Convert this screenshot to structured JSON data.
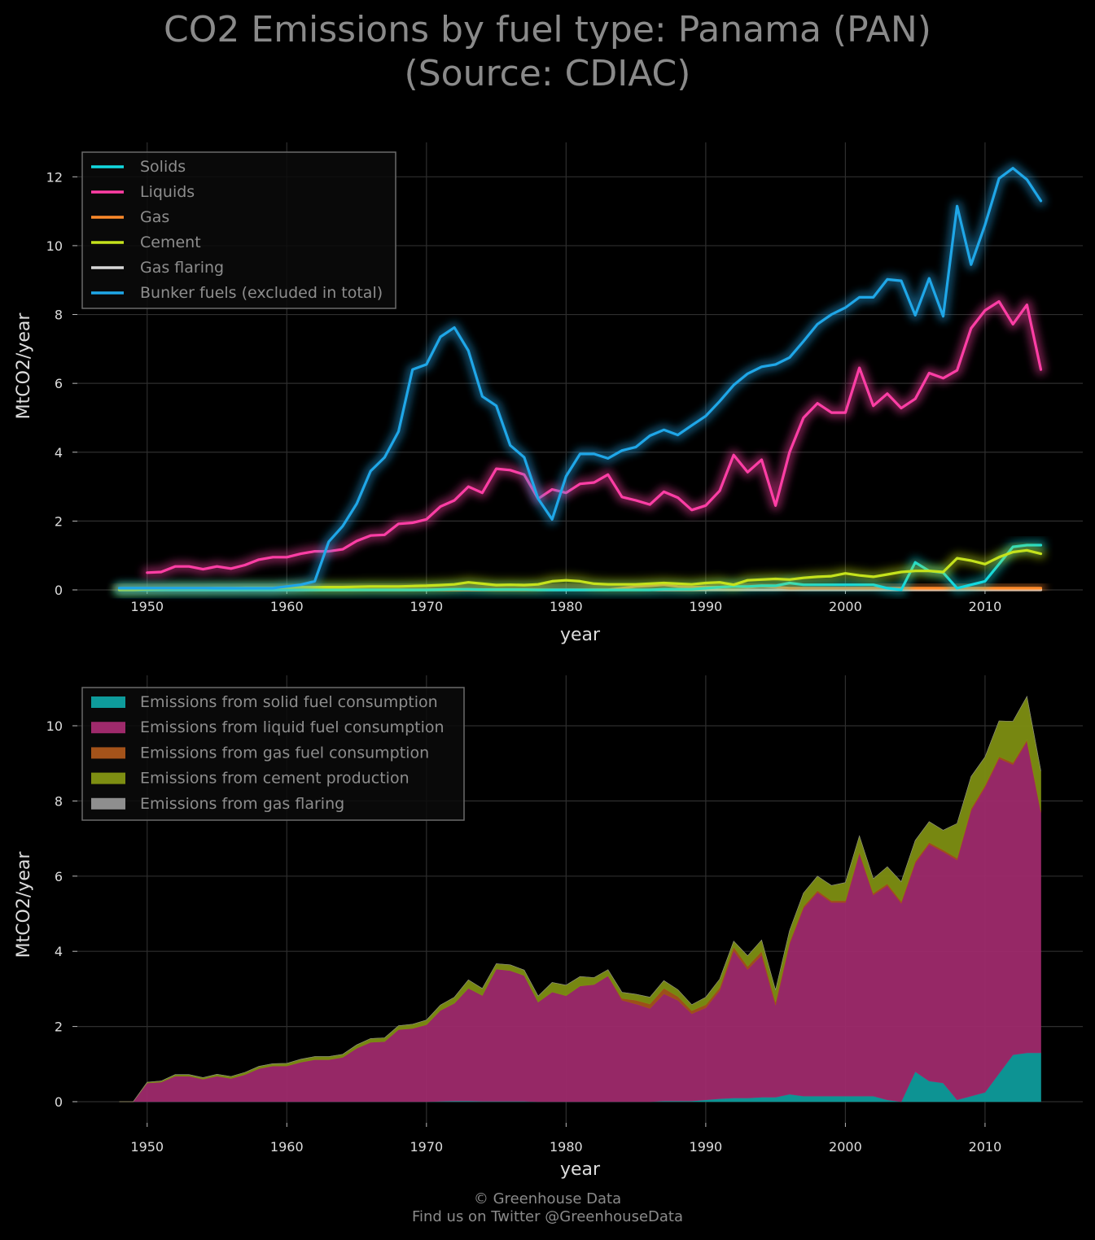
{
  "title_line1": "CO2 Emissions by fuel type: Panama (PAN)",
  "title_line2": "(Source: CDIAC)",
  "footer_line1": "© Greenhouse Data",
  "footer_line2": "Find us on Twitter @GreenhouseData",
  "chart_data": [
    {
      "type": "line",
      "xlabel": "year",
      "ylabel": "MtCO2/year",
      "xlim": [
        1945,
        2017
      ],
      "ylim": [
        0,
        13
      ],
      "xticks": [
        1950,
        1960,
        1970,
        1980,
        1990,
        2000,
        2010
      ],
      "yticks": [
        0,
        2,
        4,
        6,
        8,
        10,
        12
      ],
      "grid": true,
      "legend_position": "top-left",
      "x": [
        1948,
        1949,
        1950,
        1951,
        1952,
        1953,
        1954,
        1955,
        1956,
        1957,
        1958,
        1959,
        1960,
        1961,
        1962,
        1963,
        1964,
        1965,
        1966,
        1967,
        1968,
        1969,
        1970,
        1971,
        1972,
        1973,
        1974,
        1975,
        1976,
        1977,
        1978,
        1979,
        1980,
        1981,
        1982,
        1983,
        1984,
        1985,
        1986,
        1987,
        1988,
        1989,
        1990,
        1991,
        1992,
        1993,
        1994,
        1995,
        1996,
        1997,
        1998,
        1999,
        2000,
        2001,
        2002,
        2003,
        2004,
        2005,
        2006,
        2007,
        2008,
        2009,
        2010,
        2011,
        2012,
        2013,
        2014
      ],
      "series": [
        {
          "name": "Solids",
          "color": "#12d9e0",
          "values": [
            0,
            0,
            0,
            0,
            0,
            0,
            0,
            0,
            0,
            0,
            0,
            0,
            0,
            0,
            0,
            0,
            0,
            0,
            0,
            0,
            0,
            0,
            0,
            0.01,
            0.02,
            0.02,
            0.01,
            0.01,
            0.01,
            0.01,
            0,
            0,
            0,
            0,
            0,
            0,
            0,
            0,
            0,
            0.02,
            0.02,
            0.02,
            0.05,
            0.08,
            0.1,
            0.1,
            0.12,
            0.12,
            0.2,
            0.15,
            0.15,
            0.15,
            0.15,
            0.15,
            0.15,
            0.05,
            0,
            0.8,
            0.55,
            0.5,
            0.05,
            0.15,
            0.25,
            0.75,
            1.25,
            1.3,
            1.3
          ]
        },
        {
          "name": "Liquids",
          "color": "#ff3ea5",
          "values": [
            null,
            null,
            0.5,
            0.52,
            0.68,
            0.68,
            0.6,
            0.68,
            0.62,
            0.72,
            0.88,
            0.95,
            0.95,
            1.05,
            1.12,
            1.12,
            1.18,
            1.42,
            1.58,
            1.6,
            1.92,
            1.95,
            2.05,
            2.42,
            2.6,
            3.0,
            2.82,
            3.52,
            3.48,
            3.35,
            2.65,
            2.92,
            2.82,
            3.08,
            3.12,
            3.35,
            2.7,
            2.6,
            2.48,
            2.85,
            2.68,
            2.32,
            2.45,
            2.88,
            3.92,
            3.42,
            3.78,
            2.45,
            4.0,
            5.0,
            5.42,
            5.15,
            5.15,
            6.45,
            5.35,
            5.7,
            5.28,
            5.55,
            6.3,
            6.15,
            6.38,
            7.6,
            8.12,
            8.38,
            7.72,
            8.28,
            6.4
          ]
        },
        {
          "name": "Gas",
          "color": "#ff8a2a",
          "values": [
            0,
            0,
            0,
            0,
            0,
            0,
            0,
            0,
            0,
            0,
            0,
            0,
            0,
            0,
            0,
            0,
            0,
            0,
            0,
            0,
            0,
            0,
            0,
            0,
            0,
            0,
            0,
            0,
            0,
            0,
            0,
            0,
            0,
            0,
            0,
            0,
            0.05,
            0.1,
            0.12,
            0.15,
            0.1,
            0.08,
            0.08,
            0.08,
            0.1,
            0.08,
            0.1,
            0.08,
            0.05,
            0.05,
            0.05,
            0.05,
            0.05,
            0.05,
            0.05,
            0.05,
            0.05,
            0.05,
            0.05,
            0.05,
            0.05,
            0.05,
            0.05,
            0.05,
            0.05,
            0.05,
            0.05
          ]
        },
        {
          "name": "Cement",
          "color": "#c5e21c",
          "values": [
            0,
            0,
            0.02,
            0.03,
            0.04,
            0.04,
            0.04,
            0.05,
            0.05,
            0.06,
            0.06,
            0.06,
            0.07,
            0.08,
            0.08,
            0.08,
            0.08,
            0.09,
            0.1,
            0.1,
            0.1,
            0.11,
            0.12,
            0.14,
            0.16,
            0.22,
            0.18,
            0.14,
            0.15,
            0.14,
            0.16,
            0.25,
            0.28,
            0.25,
            0.18,
            0.16,
            0.16,
            0.16,
            0.18,
            0.2,
            0.18,
            0.16,
            0.2,
            0.22,
            0.15,
            0.28,
            0.3,
            0.32,
            0.3,
            0.35,
            0.38,
            0.4,
            0.48,
            0.42,
            0.38,
            0.45,
            0.52,
            0.55,
            0.55,
            0.52,
            0.92,
            0.85,
            0.75,
            0.95,
            1.1,
            1.15,
            1.05
          ]
        },
        {
          "name": "Gas flaring",
          "color": "#d8d8d8",
          "values": [
            0,
            0,
            0,
            0,
            0,
            0,
            0,
            0,
            0,
            0,
            0,
            0,
            0,
            0,
            0,
            0,
            0,
            0,
            0,
            0,
            0,
            0,
            0,
            0,
            0,
            0,
            0,
            0,
            0,
            0,
            0,
            0,
            0,
            0,
            0,
            0,
            0,
            0,
            0,
            0,
            0,
            0,
            0,
            0,
            0,
            0,
            0,
            0,
            0,
            0,
            0,
            0,
            0,
            0,
            0,
            0,
            0,
            0,
            0,
            0,
            0,
            0,
            0,
            0,
            0,
            0,
            0
          ]
        },
        {
          "name": "Bunker fuels (excluded in total)",
          "color": "#1fa7e8",
          "values": [
            0.05,
            0.05,
            0.05,
            0.05,
            0.05,
            0.05,
            0.05,
            0.05,
            0.05,
            0.05,
            0.05,
            0.05,
            0.1,
            0.15,
            0.25,
            1.4,
            1.85,
            2.5,
            3.45,
            3.85,
            4.6,
            6.4,
            6.55,
            7.35,
            7.62,
            6.95,
            5.62,
            5.35,
            4.2,
            3.85,
            2.65,
            2.05,
            3.3,
            3.95,
            3.95,
            3.82,
            4.05,
            4.15,
            4.48,
            4.65,
            4.5,
            4.78,
            5.05,
            5.48,
            5.95,
            6.28,
            6.48,
            6.55,
            6.75,
            7.22,
            7.72,
            8.0,
            8.2,
            8.5,
            8.5,
            9.02,
            8.98,
            7.98,
            9.05,
            7.95,
            11.15,
            9.45,
            10.6,
            11.95,
            12.25,
            11.92,
            11.3
          ]
        }
      ]
    },
    {
      "type": "area",
      "xlabel": "year",
      "ylabel": "MtCO2/year",
      "xlim": [
        1945,
        2017
      ],
      "ylim": [
        0,
        11.2
      ],
      "xticks": [
        1950,
        1960,
        1970,
        1980,
        1990,
        2000,
        2010
      ],
      "yticks": [
        0,
        2,
        4,
        6,
        8,
        10
      ],
      "grid": true,
      "stacked": true,
      "legend_position": "top-left",
      "series_ref": "same x as chart 1",
      "series": [
        {
          "name": "Emissions from solid fuel consumption",
          "color": "#0e9b9b",
          "ref": "Solids"
        },
        {
          "name": "Emissions from liquid fuel consumption",
          "color": "#9e2a6b",
          "ref": "Liquids"
        },
        {
          "name": "Emissions from gas fuel consumption",
          "color": "#a4531a",
          "ref": "Gas"
        },
        {
          "name": "Emissions from cement production",
          "color": "#7d8e12",
          "ref": "Cement"
        },
        {
          "name": "Emissions from gas flaring",
          "color": "#8e8e8e",
          "ref": "Gas flaring"
        }
      ]
    }
  ]
}
